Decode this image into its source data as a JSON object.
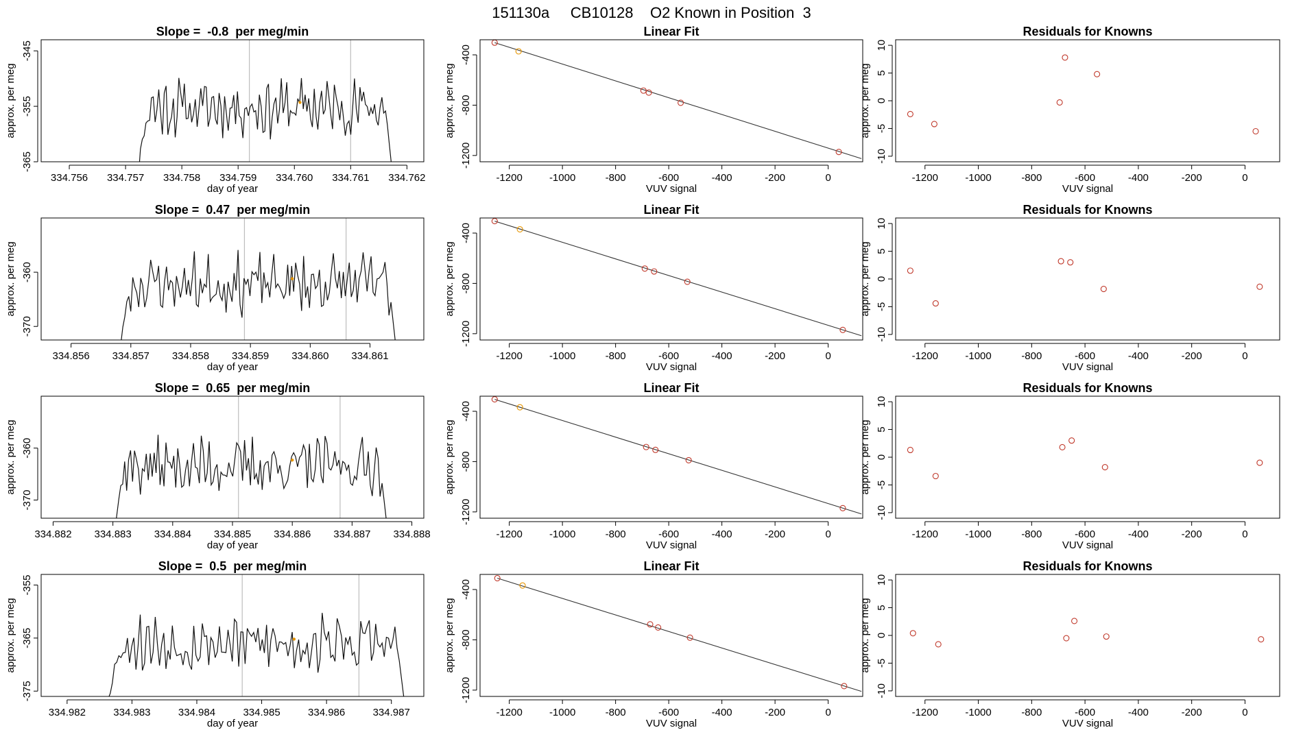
{
  "figure": {
    "run_id": "151130a",
    "tank_id": "CB10128",
    "label": "O2 Known in Position  3",
    "title_line": "151130a     CB10128    O2 Known in Position  3"
  },
  "colors": {
    "trace": "#111111",
    "fit_line": "#333333",
    "known_points": "#c0392b",
    "highlight_point": "#e69500",
    "vertical_guides": "#bdbdbd"
  },
  "chart_data": [
    {
      "row": 1,
      "col": 1,
      "type": "line",
      "title": "Slope =  -0.8  per meg/min",
      "xlabel": "day of year",
      "ylabel": "approx. per meg",
      "xlim": [
        334.7555,
        334.7623
      ],
      "ylim": [
        -365,
        -343
      ],
      "xticks": [
        334.756,
        334.757,
        334.758,
        334.759,
        334.76,
        334.761,
        334.762
      ],
      "xtick_labels": [
        "334.756",
        "334.757",
        "334.758",
        "334.759",
        "334.760",
        "334.761",
        "334.762"
      ],
      "yticks": [
        -345,
        -355,
        -365
      ],
      "ytick_labels": [
        "-345",
        "-355",
        "-365"
      ],
      "series": [
        {
          "name": "trace",
          "x_start": 334.7572,
          "x_end": 334.76175,
          "n": 140,
          "base": -355.2,
          "noise": 5.2,
          "seed": 11
        }
      ],
      "vlines": [
        334.7592,
        334.761
      ],
      "marker": {
        "x": 334.7601,
        "y": -354.3
      }
    },
    {
      "row": 1,
      "col": 2,
      "type": "scatter",
      "title": "Linear Fit",
      "xlabel": "VUV signal",
      "ylabel": "approx. per meg",
      "xlim": [
        -1310,
        130
      ],
      "ylim": [
        -1250,
        -280
      ],
      "xticks": [
        -1200,
        -1000,
        -800,
        -600,
        -400,
        -200,
        0
      ],
      "xtick_labels": [
        "-1200",
        "-1000",
        "-800",
        "-600",
        "-400",
        "-200",
        "0"
      ],
      "yticks": [
        -400,
        -800,
        -1200
      ],
      "ytick_labels": [
        "-400",
        "-800",
        "-1200"
      ],
      "points": [
        {
          "x": -1255,
          "y": -303
        },
        {
          "x": -1165,
          "y": -372,
          "highlight": true
        },
        {
          "x": -695,
          "y": -684
        },
        {
          "x": -675,
          "y": -700
        },
        {
          "x": -555,
          "y": -781
        },
        {
          "x": 40,
          "y": -1172
        }
      ],
      "fit_line": {
        "x": [
          -1255,
          125
        ],
        "y": [
          -303,
          -1225
        ]
      }
    },
    {
      "row": 1,
      "col": 3,
      "type": "scatter",
      "title": "Residuals for Knowns",
      "xlabel": "VUV signal",
      "ylabel": "approx. per meg",
      "xlim": [
        -1310,
        130
      ],
      "ylim": [
        -11,
        11
      ],
      "xticks": [
        -1200,
        -1000,
        -800,
        -600,
        -400,
        -200,
        0
      ],
      "xtick_labels": [
        "-1200",
        "-1000",
        "-800",
        "-600",
        "-400",
        "-200",
        "0"
      ],
      "yticks": [
        10,
        5,
        0,
        -5,
        -10
      ],
      "ytick_labels": [
        "10",
        "5",
        "0",
        "-5",
        "-10"
      ],
      "points": [
        {
          "x": -1255,
          "y": -2.4
        },
        {
          "x": -1165,
          "y": -4.2
        },
        {
          "x": -695,
          "y": -0.3
        },
        {
          "x": -675,
          "y": 7.8
        },
        {
          "x": -555,
          "y": 4.8
        },
        {
          "x": 40,
          "y": -5.5
        }
      ]
    },
    {
      "row": 2,
      "col": 1,
      "type": "line",
      "title": "Slope =  0.47  per meg/min",
      "xlabel": "day of year",
      "ylabel": "approx. per meg",
      "xlim": [
        334.8555,
        334.8619
      ],
      "ylim": [
        -372.5,
        -350
      ],
      "xticks": [
        334.856,
        334.857,
        334.858,
        334.859,
        334.86,
        334.861
      ],
      "xtick_labels": [
        "334.856",
        "334.857",
        "334.858",
        "334.859",
        "334.860",
        "334.861"
      ],
      "yticks": [
        -360,
        -370
      ],
      "ytick_labels": [
        "-360",
        "-370"
      ],
      "series": [
        {
          "name": "trace",
          "x_start": 334.8568,
          "x_end": 334.86145,
          "n": 140,
          "base": -362.2,
          "noise": 5.5,
          "seed": 23
        }
      ],
      "vlines": [
        334.8589,
        334.8606
      ],
      "marker": {
        "x": 334.8597,
        "y": -361.2
      }
    },
    {
      "row": 2,
      "col": 2,
      "type": "scatter",
      "title": "Linear Fit",
      "xlabel": "VUV signal",
      "ylabel": "approx. per meg",
      "xlim": [
        -1310,
        130
      ],
      "ylim": [
        -1250,
        -280
      ],
      "xticks": [
        -1200,
        -1000,
        -800,
        -600,
        -400,
        -200,
        0
      ],
      "xtick_labels": [
        "-1200",
        "-1000",
        "-800",
        "-600",
        "-400",
        "-200",
        "0"
      ],
      "yticks": [
        -400,
        -800,
        -1200
      ],
      "ytick_labels": [
        "-400",
        "-800",
        "-1200"
      ],
      "points": [
        {
          "x": -1255,
          "y": -305
        },
        {
          "x": -1160,
          "y": -370,
          "highlight": true
        },
        {
          "x": -690,
          "y": -682
        },
        {
          "x": -655,
          "y": -705
        },
        {
          "x": -530,
          "y": -787
        },
        {
          "x": 55,
          "y": -1170
        }
      ],
      "fit_line": {
        "x": [
          -1255,
          125
        ],
        "y": [
          -305,
          -1216
        ]
      }
    },
    {
      "row": 2,
      "col": 3,
      "type": "scatter",
      "title": "Residuals for Knowns",
      "xlabel": "VUV signal",
      "ylabel": "approx. per meg",
      "xlim": [
        -1310,
        130
      ],
      "ylim": [
        -11,
        11
      ],
      "xticks": [
        -1200,
        -1000,
        -800,
        -600,
        -400,
        -200,
        0
      ],
      "xtick_labels": [
        "-1200",
        "-1000",
        "-800",
        "-600",
        "-400",
        "-200",
        "0"
      ],
      "yticks": [
        10,
        5,
        0,
        -5,
        -10
      ],
      "ytick_labels": [
        "10",
        "5",
        "0",
        "-5",
        "-10"
      ],
      "points": [
        {
          "x": -1255,
          "y": 1.5
        },
        {
          "x": -1160,
          "y": -4.4
        },
        {
          "x": -690,
          "y": 3.2
        },
        {
          "x": -655,
          "y": 3.0
        },
        {
          "x": -530,
          "y": -1.8
        },
        {
          "x": 55,
          "y": -1.4
        }
      ]
    },
    {
      "row": 3,
      "col": 1,
      "type": "line",
      "title": "Slope =  0.65  per meg/min",
      "xlabel": "day of year",
      "ylabel": "approx. per meg",
      "xlim": [
        334.8818,
        334.8882
      ],
      "ylim": [
        -373.5,
        -350
      ],
      "xticks": [
        334.882,
        334.883,
        334.884,
        334.885,
        334.886,
        334.887,
        334.888
      ],
      "xtick_labels": [
        "334.882",
        "334.883",
        "334.884",
        "334.885",
        "334.886",
        "334.887",
        "334.888"
      ],
      "yticks": [
        -360,
        -370
      ],
      "ytick_labels": [
        "-360",
        "-370"
      ],
      "series": [
        {
          "name": "trace",
          "x_start": 334.883,
          "x_end": 334.8876,
          "n": 140,
          "base": -363.5,
          "noise": 5.5,
          "seed": 37
        }
      ],
      "vlines": [
        334.8851,
        334.8868
      ],
      "marker": {
        "x": 334.886,
        "y": -362.3
      }
    },
    {
      "row": 3,
      "col": 2,
      "type": "scatter",
      "title": "Linear Fit",
      "xlabel": "VUV signal",
      "ylabel": "approx. per meg",
      "xlim": [
        -1310,
        130
      ],
      "ylim": [
        -1250,
        -280
      ],
      "xticks": [
        -1200,
        -1000,
        -800,
        -600,
        -400,
        -200,
        0
      ],
      "xtick_labels": [
        "-1200",
        "-1000",
        "-800",
        "-600",
        "-400",
        "-200",
        "0"
      ],
      "yticks": [
        -400,
        -800,
        -1200
      ],
      "ytick_labels": [
        "-400",
        "-800",
        "-1200"
      ],
      "points": [
        {
          "x": -1255,
          "y": -305
        },
        {
          "x": -1160,
          "y": -368,
          "highlight": true
        },
        {
          "x": -685,
          "y": -684
        },
        {
          "x": -650,
          "y": -707
        },
        {
          "x": -525,
          "y": -789
        },
        {
          "x": 55,
          "y": -1170
        }
      ],
      "fit_line": {
        "x": [
          -1255,
          125
        ],
        "y": [
          -305,
          -1216
        ]
      }
    },
    {
      "row": 3,
      "col": 3,
      "type": "scatter",
      "title": "Residuals for Knowns",
      "xlabel": "VUV signal",
      "ylabel": "approx. per meg",
      "xlim": [
        -1310,
        130
      ],
      "ylim": [
        -11,
        11
      ],
      "xticks": [
        -1200,
        -1000,
        -800,
        -600,
        -400,
        -200,
        0
      ],
      "xtick_labels": [
        "-1200",
        "-1000",
        "-800",
        "-600",
        "-400",
        "-200",
        "0"
      ],
      "yticks": [
        10,
        5,
        0,
        -5,
        -10
      ],
      "ytick_labels": [
        "10",
        "5",
        "0",
        "-5",
        "-10"
      ],
      "points": [
        {
          "x": -1255,
          "y": 1.3
        },
        {
          "x": -1160,
          "y": -3.4
        },
        {
          "x": -685,
          "y": 1.8
        },
        {
          "x": -650,
          "y": 3.0
        },
        {
          "x": -525,
          "y": -1.8
        },
        {
          "x": 55,
          "y": -1.0
        }
      ]
    },
    {
      "row": 4,
      "col": 1,
      "type": "line",
      "title": "Slope =  0.5  per meg/min",
      "xlabel": "day of year",
      "ylabel": "approx. per meg",
      "xlim": [
        334.9816,
        334.9875
      ],
      "ylim": [
        -376,
        -353
      ],
      "xticks": [
        334.982,
        334.983,
        334.984,
        334.985,
        334.986,
        334.987
      ],
      "xtick_labels": [
        "334.982",
        "334.983",
        "334.984",
        "334.985",
        "334.986",
        "334.987"
      ],
      "yticks": [
        -355,
        -365,
        -375
      ],
      "ytick_labels": [
        "-355",
        "-365",
        "-375"
      ],
      "series": [
        {
          "name": "trace",
          "x_start": 334.9826,
          "x_end": 334.98722,
          "n": 140,
          "base": -366.0,
          "noise": 5.5,
          "seed": 53
        }
      ],
      "vlines": [
        334.9847,
        334.9865
      ],
      "marker": {
        "x": 334.9855,
        "y": -365.2
      }
    },
    {
      "row": 4,
      "col": 2,
      "type": "scatter",
      "title": "Linear Fit",
      "xlabel": "VUV signal",
      "ylabel": "approx. per meg",
      "xlim": [
        -1310,
        130
      ],
      "ylim": [
        -1250,
        -280
      ],
      "xticks": [
        -1200,
        -1000,
        -800,
        -600,
        -400,
        -200,
        0
      ],
      "xtick_labels": [
        "-1200",
        "-1000",
        "-800",
        "-600",
        "-400",
        "-200",
        "0"
      ],
      "yticks": [
        -400,
        -800,
        -1200
      ],
      "ytick_labels": [
        "-400",
        "-800",
        "-1200"
      ],
      "points": [
        {
          "x": -1245,
          "y": -310
        },
        {
          "x": -1150,
          "y": -368,
          "highlight": true
        },
        {
          "x": -670,
          "y": -677
        },
        {
          "x": -640,
          "y": -702
        },
        {
          "x": -520,
          "y": -783
        },
        {
          "x": 60,
          "y": -1168
        }
      ],
      "fit_line": {
        "x": [
          -1245,
          125
        ],
        "y": [
          -310,
          -1210
        ]
      }
    },
    {
      "row": 4,
      "col": 3,
      "type": "scatter",
      "title": "Residuals for Knowns",
      "xlabel": "VUV signal",
      "ylabel": "approx. per meg",
      "xlim": [
        -1310,
        130
      ],
      "ylim": [
        -11,
        11
      ],
      "xticks": [
        -1200,
        -1000,
        -800,
        -600,
        -400,
        -200,
        0
      ],
      "xtick_labels": [
        "-1200",
        "-1000",
        "-800",
        "-600",
        "-400",
        "-200",
        "0"
      ],
      "yticks": [
        10,
        5,
        0,
        -5,
        -10
      ],
      "ytick_labels": [
        "10",
        "5",
        "0",
        "-5",
        "-10"
      ],
      "points": [
        {
          "x": -1245,
          "y": 0.4
        },
        {
          "x": -1150,
          "y": -1.6
        },
        {
          "x": -670,
          "y": -0.5
        },
        {
          "x": -640,
          "y": 2.6
        },
        {
          "x": -520,
          "y": -0.2
        },
        {
          "x": 60,
          "y": -0.7
        }
      ]
    }
  ]
}
